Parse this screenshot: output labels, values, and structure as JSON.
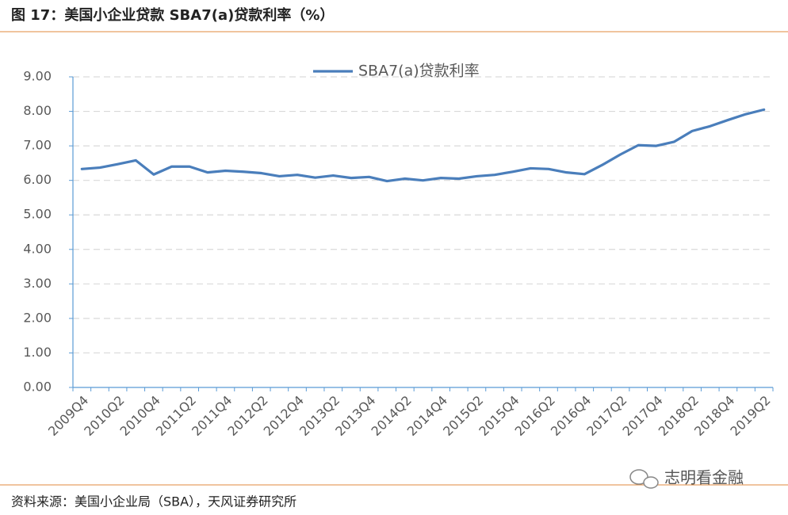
{
  "chart_data": {
    "type": "line",
    "title": "图 17：美国小企业贷款 SBA7(a)贷款利率（%）",
    "source": "资料来源：美国小企业局（SBA），天风证券研究所",
    "watermark": "志明看金融",
    "categories": [
      "2009Q4",
      null,
      "2010Q2",
      null,
      "2010Q4",
      null,
      "2011Q2",
      null,
      "2011Q4",
      null,
      "2012Q2",
      null,
      "2012Q4",
      null,
      "2013Q2",
      null,
      "2013Q4",
      null,
      "2014Q2",
      null,
      "2014Q4",
      null,
      "2015Q2",
      null,
      "2015Q4",
      null,
      "2016Q2",
      null,
      "2016Q4",
      null,
      "2017Q2",
      null,
      "2017Q4",
      null,
      "2018Q2",
      null,
      "2018Q4",
      null,
      "2019Q2"
    ],
    "series": [
      {
        "name": "SBA7(a)贷款利率",
        "color": "#4a7ebb",
        "values": [
          6.33,
          6.37,
          6.47,
          6.58,
          6.17,
          6.4,
          6.4,
          6.23,
          6.28,
          6.25,
          6.21,
          6.12,
          6.16,
          6.08,
          6.14,
          6.07,
          6.1,
          5.98,
          6.05,
          6.0,
          6.07,
          6.05,
          6.12,
          6.16,
          6.25,
          6.35,
          6.33,
          6.23,
          6.18,
          6.45,
          6.75,
          7.02,
          7.0,
          7.12,
          7.43,
          7.57,
          7.75,
          7.92,
          8.05
        ]
      }
    ],
    "ylim": [
      0,
      9
    ],
    "yticks": [
      {
        "value": 0,
        "label": "0.00"
      },
      {
        "value": 1,
        "label": "1.00"
      },
      {
        "value": 2,
        "label": "2.00"
      },
      {
        "value": 3,
        "label": "3.00"
      },
      {
        "value": 4,
        "label": "4.00"
      },
      {
        "value": 5,
        "label": "5.00"
      },
      {
        "value": 6,
        "label": "6.00"
      },
      {
        "value": 7,
        "label": "7.00"
      },
      {
        "value": 8,
        "label": "8.00"
      },
      {
        "value": 9,
        "label": "9.00"
      }
    ],
    "grid": true,
    "legend": "top"
  }
}
